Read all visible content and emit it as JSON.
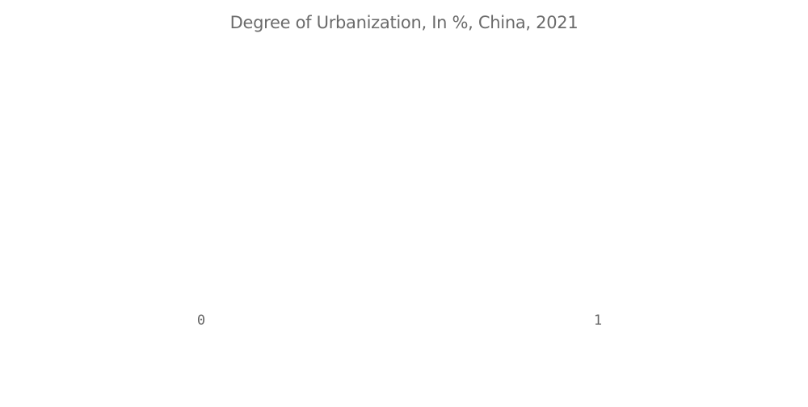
{
  "chart_data": {
    "type": "bar",
    "title": "Degree of Urbanization, In %, China, 2021",
    "x_ticks": [
      "0",
      "1"
    ],
    "xlim": [
      0,
      1
    ],
    "categories": [],
    "values": [],
    "grid": false,
    "text_color": "#666666"
  }
}
